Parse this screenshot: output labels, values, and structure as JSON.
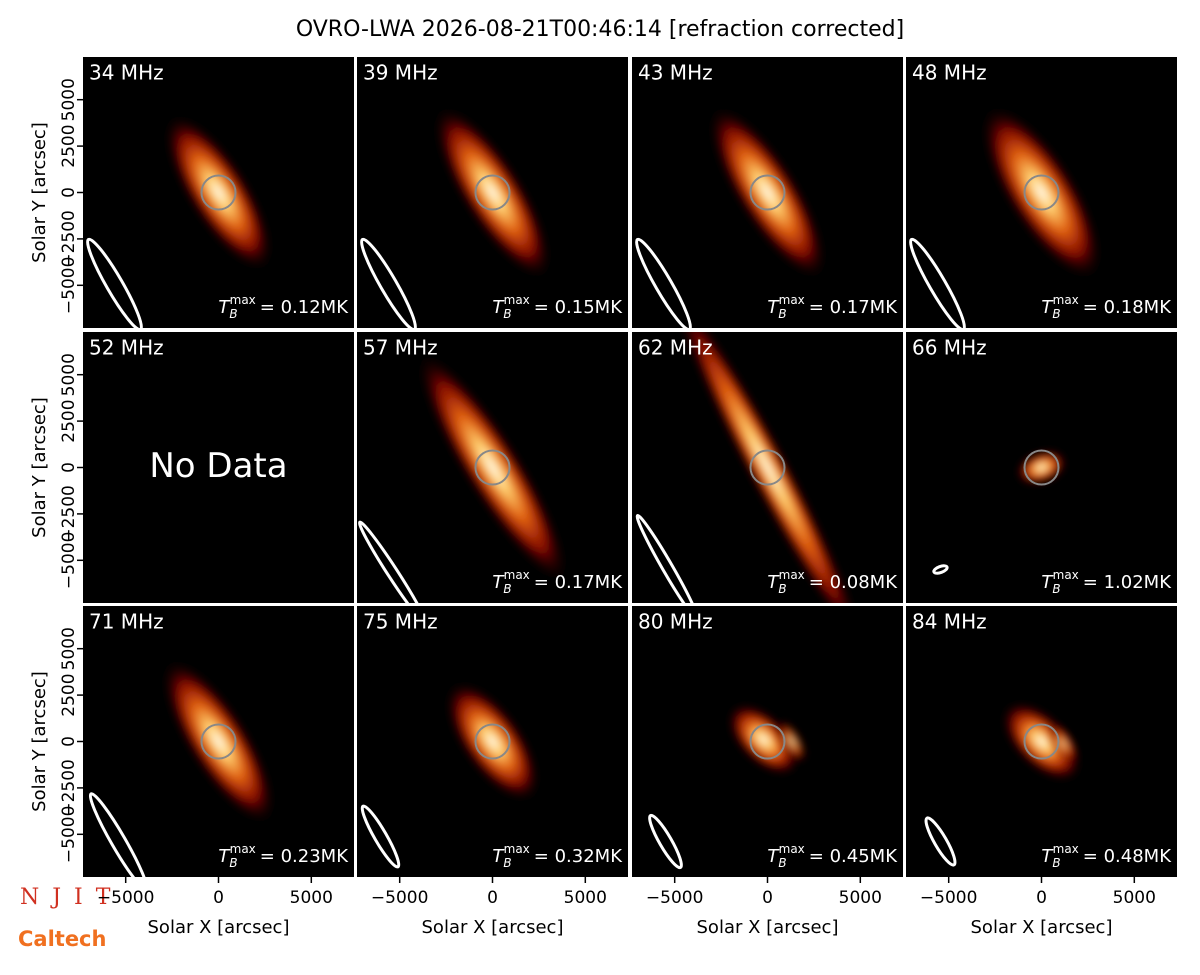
{
  "title": "OVRO-LWA 2026-08-21T00:46:14 [refraction corrected]",
  "logos": [
    "N J I T",
    "Caltech"
  ],
  "chart_data": [
    {
      "type": "image",
      "title": "34 MHz",
      "annotation": {
        "symbol": "T",
        "subscript": "B",
        "superscript": "max",
        "text": "= 0.12MK"
      },
      "xlim": [
        -7300,
        7300
      ],
      "ylim": [
        -7300,
        7300
      ],
      "ylabel": "Solar Y [arcsec]",
      "yticks": [
        {
          "value": -5000,
          "label": "−5000"
        },
        {
          "value": -2500,
          "label": "−2500"
        },
        0,
        2500,
        5000
      ]
    },
    {
      "type": "image",
      "title": "39 MHz",
      "annotation": {
        "symbol": "T",
        "subscript": "B",
        "superscript": "max",
        "text": "= 0.15MK"
      },
      "xlim": [
        -7300,
        7300
      ],
      "ylim": [
        -7300,
        7300
      ]
    },
    {
      "type": "image",
      "title": "43 MHz",
      "annotation": {
        "symbol": "T",
        "subscript": "B",
        "superscript": "max",
        "text": "= 0.17MK"
      },
      "xlim": [
        -7300,
        7300
      ],
      "ylim": [
        -7300,
        7300
      ]
    },
    {
      "type": "image",
      "title": "48 MHz",
      "annotation": {
        "symbol": "T",
        "subscript": "B",
        "superscript": "max",
        "text": "= 0.18MK"
      },
      "xlim": [
        -7300,
        7300
      ],
      "ylim": [
        -7300,
        7300
      ]
    },
    {
      "type": "image",
      "title": "52 MHz",
      "message": "No Data",
      "xlim": [
        -7300,
        7300
      ],
      "ylim": [
        -7300,
        7300
      ],
      "ylabel": "Solar Y [arcsec]",
      "yticks": [
        {
          "value": -5000,
          "label": "−5000"
        },
        {
          "value": -2500,
          "label": "−2500"
        },
        0,
        2500,
        5000
      ]
    },
    {
      "type": "image",
      "title": "57 MHz",
      "annotation": {
        "symbol": "T",
        "subscript": "B",
        "superscript": "max",
        "text": "= 0.17MK"
      },
      "xlim": [
        -7300,
        7300
      ],
      "ylim": [
        -7300,
        7300
      ]
    },
    {
      "type": "image",
      "title": "62 MHz",
      "annotation": {
        "symbol": "T",
        "subscript": "B",
        "superscript": "max",
        "text": "= 0.08MK"
      },
      "xlim": [
        -7300,
        7300
      ],
      "ylim": [
        -7300,
        7300
      ]
    },
    {
      "type": "image",
      "title": "66 MHz",
      "annotation": {
        "symbol": "T",
        "subscript": "B",
        "superscript": "max",
        "text": "= 1.02MK"
      },
      "xlim": [
        -7300,
        7300
      ],
      "ylim": [
        -7300,
        7300
      ]
    },
    {
      "type": "image",
      "title": "71 MHz",
      "annotation": {
        "symbol": "T",
        "subscript": "B",
        "superscript": "max",
        "text": "= 0.23MK"
      },
      "xlim": [
        -7300,
        7300
      ],
      "ylim": [
        -7300,
        7300
      ],
      "xlabel": "Solar X [arcsec]",
      "ylabel": "Solar Y [arcsec]",
      "xticks": [
        {
          "value": -5000,
          "label": "−5000"
        },
        0,
        5000
      ],
      "yticks": [
        {
          "value": -5000,
          "label": "−5000"
        },
        {
          "value": -2500,
          "label": "−2500"
        },
        0,
        2500,
        5000
      ]
    },
    {
      "type": "image",
      "title": "75 MHz",
      "annotation": {
        "symbol": "T",
        "subscript": "B",
        "superscript": "max",
        "text": "= 0.32MK"
      },
      "xlim": [
        -7300,
        7300
      ],
      "ylim": [
        -7300,
        7300
      ],
      "xlabel": "Solar X [arcsec]",
      "xticks": [
        {
          "value": -5000,
          "label": "−5000"
        },
        0,
        5000
      ]
    },
    {
      "type": "image",
      "title": "80 MHz",
      "annotation": {
        "symbol": "T",
        "subscript": "B",
        "superscript": "max",
        "text": "= 0.45MK"
      },
      "xlim": [
        -7300,
        7300
      ],
      "ylim": [
        -7300,
        7300
      ],
      "xlabel": "Solar X [arcsec]",
      "xticks": [
        {
          "value": -5000,
          "label": "−5000"
        },
        0,
        5000
      ]
    },
    {
      "type": "image",
      "title": "84 MHz",
      "annotation": {
        "symbol": "T",
        "subscript": "B",
        "superscript": "max",
        "text": "= 0.48MK"
      },
      "xlim": [
        -7300,
        7300
      ],
      "ylim": [
        -7300,
        7300
      ],
      "xlabel": "Solar X [arcsec]",
      "xticks": [
        {
          "value": -5000,
          "label": "−5000"
        },
        0,
        5000
      ]
    }
  ]
}
